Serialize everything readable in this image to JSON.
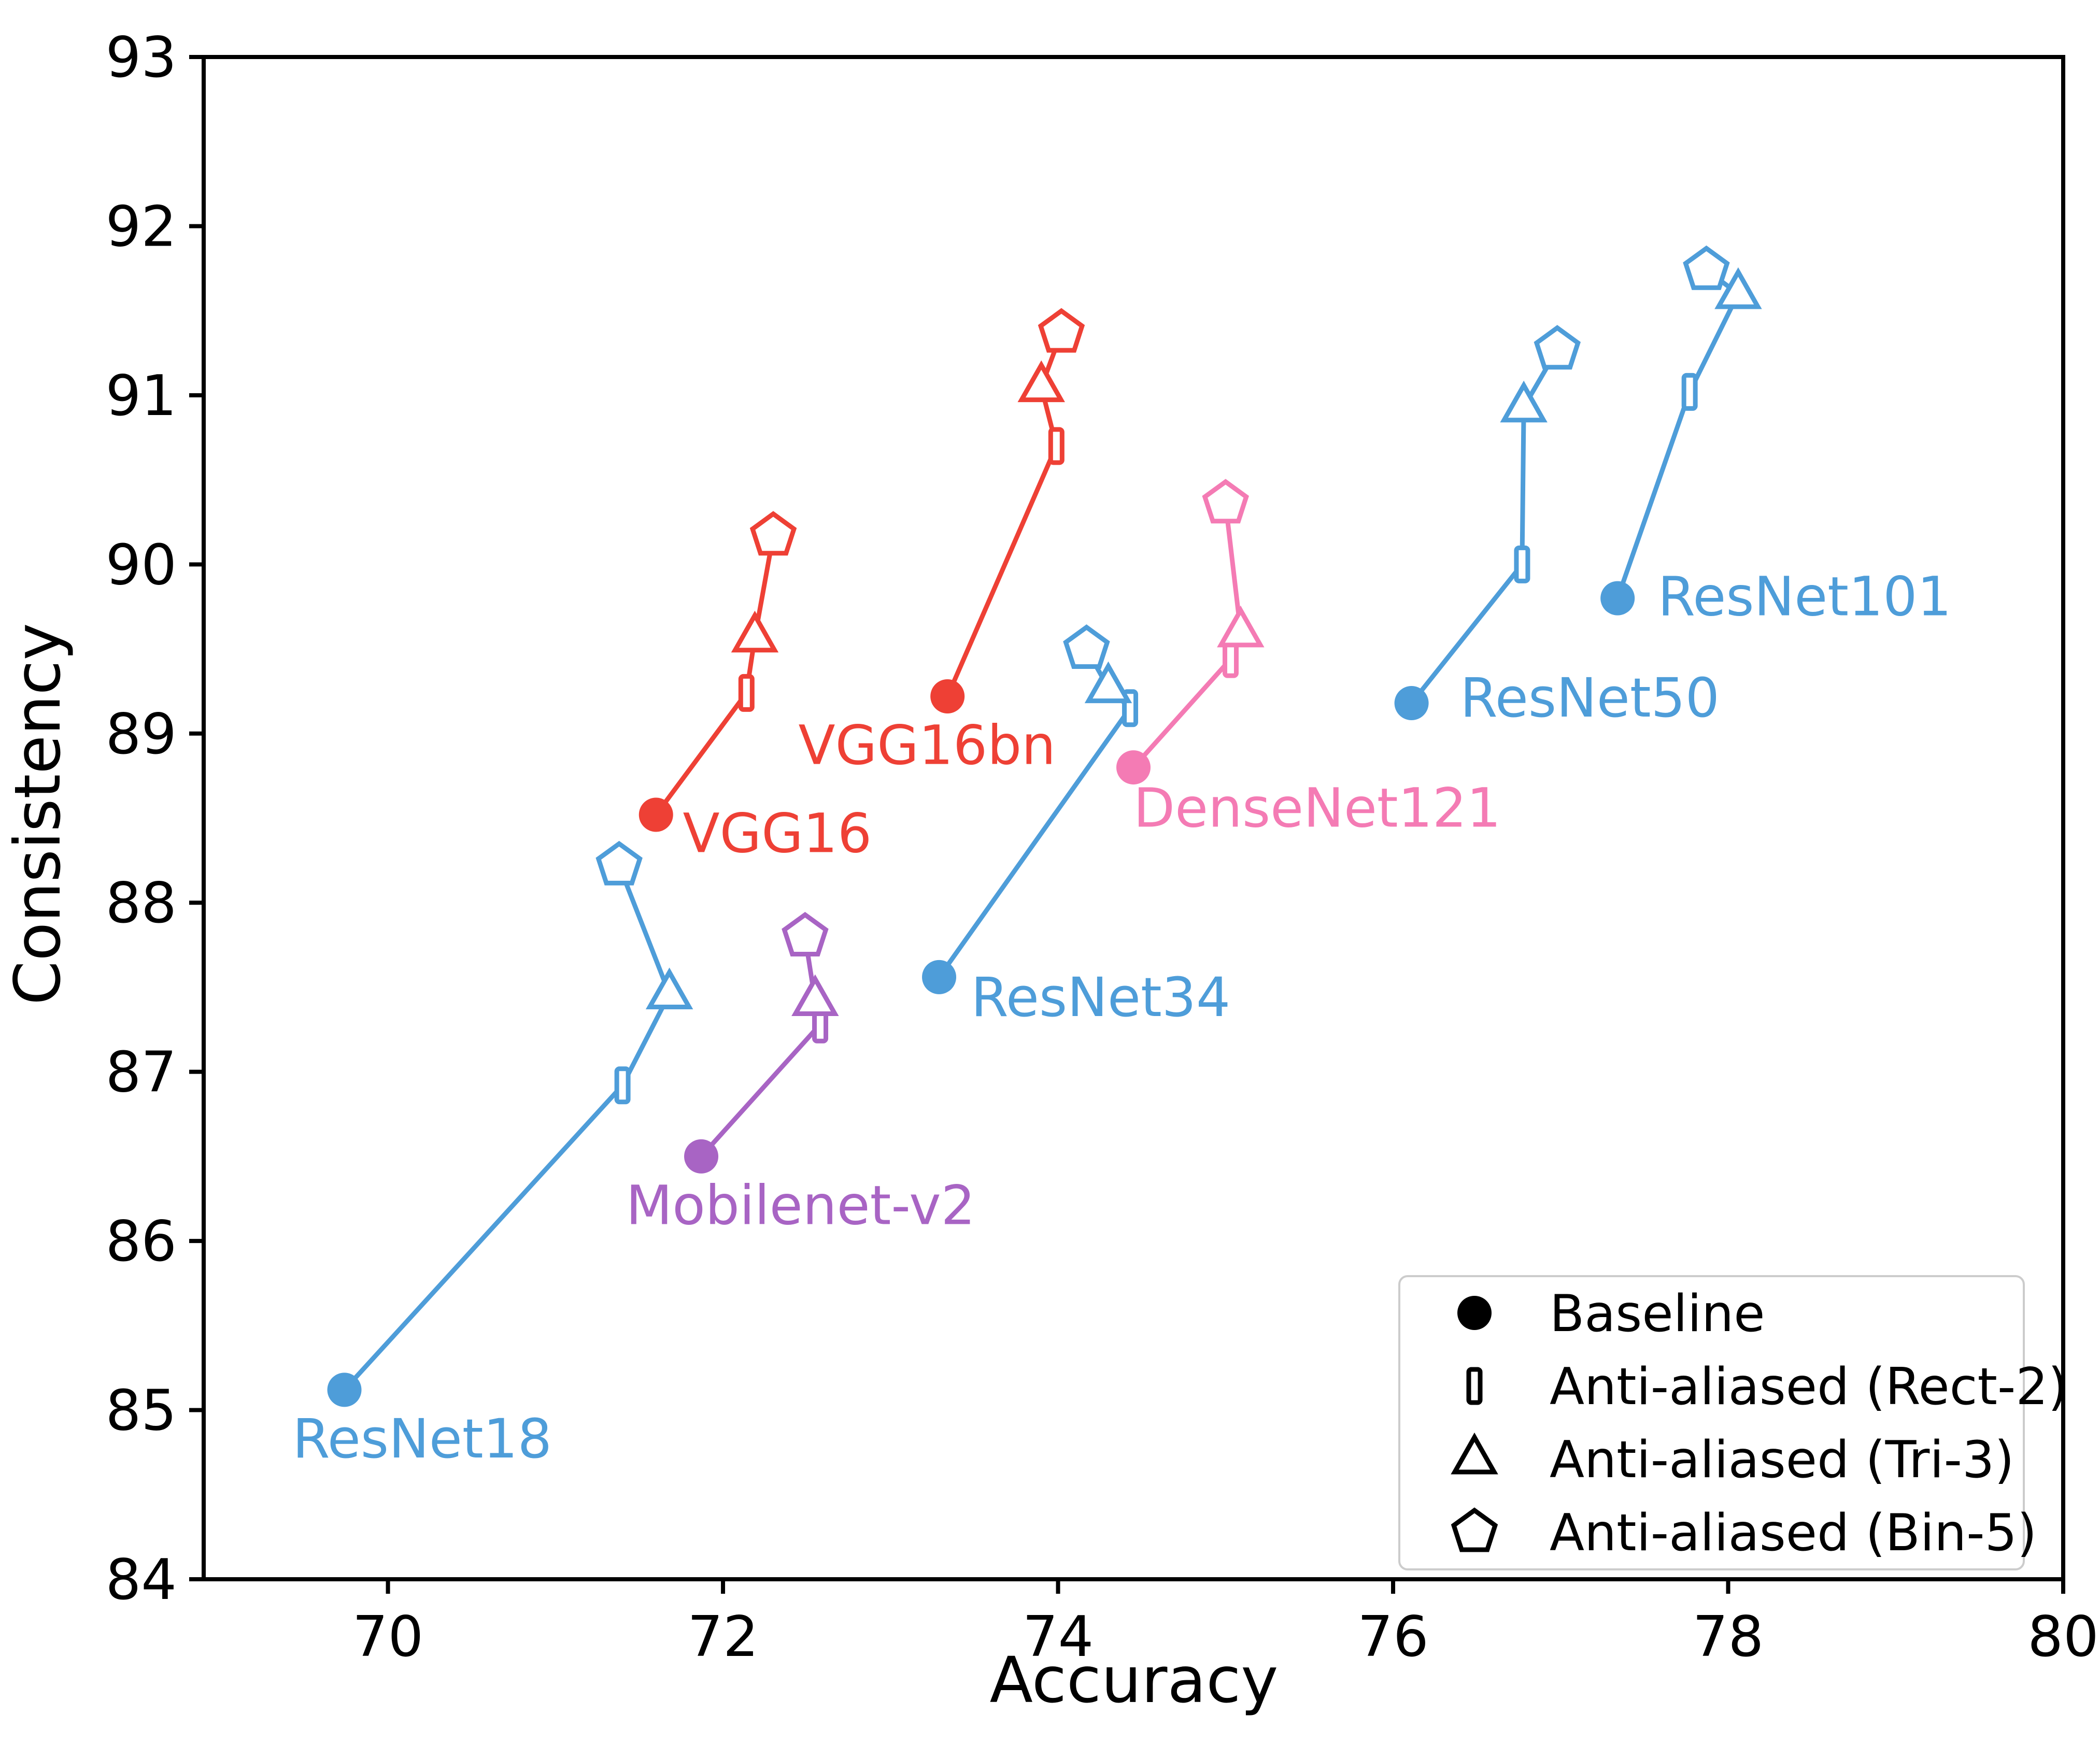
{
  "chart_data": {
    "type": "scatter",
    "title": "",
    "xlabel": "Accuracy",
    "ylabel": "Consistency",
    "xlim": [
      68.9,
      80
    ],
    "ylim": [
      84,
      93
    ],
    "x_ticks": [
      70,
      72,
      74,
      76,
      78,
      80
    ],
    "y_ticks": [
      84,
      85,
      86,
      87,
      88,
      89,
      90,
      91,
      92,
      93
    ],
    "grid": false,
    "legend": {
      "position": "lower right",
      "entries": [
        {
          "marker": "circle",
          "filled": true,
          "label": "Baseline"
        },
        {
          "marker": "rect",
          "filled": false,
          "label": "Anti-aliased (Rect-2)"
        },
        {
          "marker": "triangle",
          "filled": false,
          "label": "Anti-aliased (Tri-3)"
        },
        {
          "marker": "pentagon",
          "filled": false,
          "label": "Anti-aliased (Bin-5)"
        }
      ]
    },
    "colors": {
      "resnet_blue": "#4E9DD9",
      "vgg_red": "#EE4035",
      "densenet_pink": "#F47BB4",
      "mobilenet_purple": "#A864C4",
      "legend_border": "#cccccc",
      "axis_black": "#000000"
    },
    "series": [
      {
        "name": "ResNet18",
        "color": "#4E9DD9",
        "label_pos": [
          69.43,
          84.72
        ],
        "points": [
          {
            "variant": "Baseline",
            "marker": "circle",
            "x": 69.74,
            "y": 85.12
          },
          {
            "variant": "Anti-aliased (Rect-2)",
            "marker": "rect",
            "x": 71.4,
            "y": 86.92
          },
          {
            "variant": "Anti-aliased (Tri-3)",
            "marker": "triangle",
            "x": 71.68,
            "y": 87.46
          },
          {
            "variant": "Anti-aliased (Bin-5)",
            "marker": "pentagon",
            "x": 71.38,
            "y": 88.22
          }
        ]
      },
      {
        "name": "Mobilenet-v2",
        "color": "#A864C4",
        "label_pos": [
          71.42,
          86.1
        ],
        "points": [
          {
            "variant": "Baseline",
            "marker": "circle",
            "x": 71.87,
            "y": 86.5
          },
          {
            "variant": "Anti-aliased (Rect-2)",
            "marker": "rect",
            "x": 72.58,
            "y": 87.28
          },
          {
            "variant": "Anti-aliased (Tri-3)",
            "marker": "triangle",
            "x": 72.55,
            "y": 87.42
          },
          {
            "variant": "Anti-aliased (Bin-5)",
            "marker": "pentagon",
            "x": 72.49,
            "y": 87.8
          }
        ]
      },
      {
        "name": "VGG16",
        "color": "#EE4035",
        "label_pos": [
          71.76,
          88.3
        ],
        "points": [
          {
            "variant": "Baseline",
            "marker": "circle",
            "x": 71.6,
            "y": 88.52
          },
          {
            "variant": "Anti-aliased (Rect-2)",
            "marker": "rect",
            "x": 72.14,
            "y": 89.24
          },
          {
            "variant": "Anti-aliased (Tri-3)",
            "marker": "triangle",
            "x": 72.19,
            "y": 89.57
          },
          {
            "variant": "Anti-aliased (Bin-5)",
            "marker": "pentagon",
            "x": 72.3,
            "y": 90.17
          }
        ]
      },
      {
        "name": "VGG16bn",
        "color": "#EE4035",
        "label_pos": [
          72.45,
          88.82
        ],
        "points": [
          {
            "variant": "Baseline",
            "marker": "circle",
            "x": 73.34,
            "y": 89.22
          },
          {
            "variant": "Anti-aliased (Rect-2)",
            "marker": "rect",
            "x": 73.99,
            "y": 90.7
          },
          {
            "variant": "Anti-aliased (Tri-3)",
            "marker": "triangle",
            "x": 73.9,
            "y": 91.05
          },
          {
            "variant": "Anti-aliased (Bin-5)",
            "marker": "pentagon",
            "x": 74.02,
            "y": 91.37
          }
        ]
      },
      {
        "name": "ResNet34",
        "color": "#4E9DD9",
        "label_pos": [
          73.48,
          87.33
        ],
        "points": [
          {
            "variant": "Baseline",
            "marker": "circle",
            "x": 73.29,
            "y": 87.56
          },
          {
            "variant": "Anti-aliased (Rect-2)",
            "marker": "rect",
            "x": 74.43,
            "y": 89.15
          },
          {
            "variant": "Anti-aliased (Tri-3)",
            "marker": "triangle",
            "x": 74.3,
            "y": 89.27
          },
          {
            "variant": "Anti-aliased (Bin-5)",
            "marker": "pentagon",
            "x": 74.17,
            "y": 89.5
          }
        ]
      },
      {
        "name": "DenseNet121",
        "color": "#F47BB4",
        "label_pos": [
          74.45,
          88.45
        ],
        "points": [
          {
            "variant": "Baseline",
            "marker": "circle",
            "x": 74.45,
            "y": 88.8
          },
          {
            "variant": "Anti-aliased (Rect-2)",
            "marker": "rect",
            "x": 75.03,
            "y": 89.44
          },
          {
            "variant": "Anti-aliased (Tri-3)",
            "marker": "triangle",
            "x": 75.09,
            "y": 89.6
          },
          {
            "variant": "Anti-aliased (Bin-5)",
            "marker": "pentagon",
            "x": 75.0,
            "y": 90.36
          }
        ]
      },
      {
        "name": "ResNet50",
        "color": "#4E9DD9",
        "label_pos": [
          76.4,
          89.1
        ],
        "points": [
          {
            "variant": "Baseline",
            "marker": "circle",
            "x": 76.11,
            "y": 89.18
          },
          {
            "variant": "Anti-aliased (Rect-2)",
            "marker": "rect",
            "x": 76.77,
            "y": 90.0
          },
          {
            "variant": "Anti-aliased (Tri-3)",
            "marker": "triangle",
            "x": 76.78,
            "y": 90.93
          },
          {
            "variant": "Anti-aliased (Bin-5)",
            "marker": "pentagon",
            "x": 76.98,
            "y": 91.27
          }
        ]
      },
      {
        "name": "ResNet101",
        "color": "#4E9DD9",
        "label_pos": [
          77.58,
          89.7
        ],
        "points": [
          {
            "variant": "Baseline",
            "marker": "circle",
            "x": 77.34,
            "y": 89.8
          },
          {
            "variant": "Anti-aliased (Rect-2)",
            "marker": "rect",
            "x": 77.77,
            "y": 91.02
          },
          {
            "variant": "Anti-aliased (Tri-3)",
            "marker": "triangle",
            "x": 78.06,
            "y": 91.6
          },
          {
            "variant": "Anti-aliased (Bin-5)",
            "marker": "pentagon",
            "x": 77.87,
            "y": 91.74
          }
        ]
      }
    ]
  }
}
